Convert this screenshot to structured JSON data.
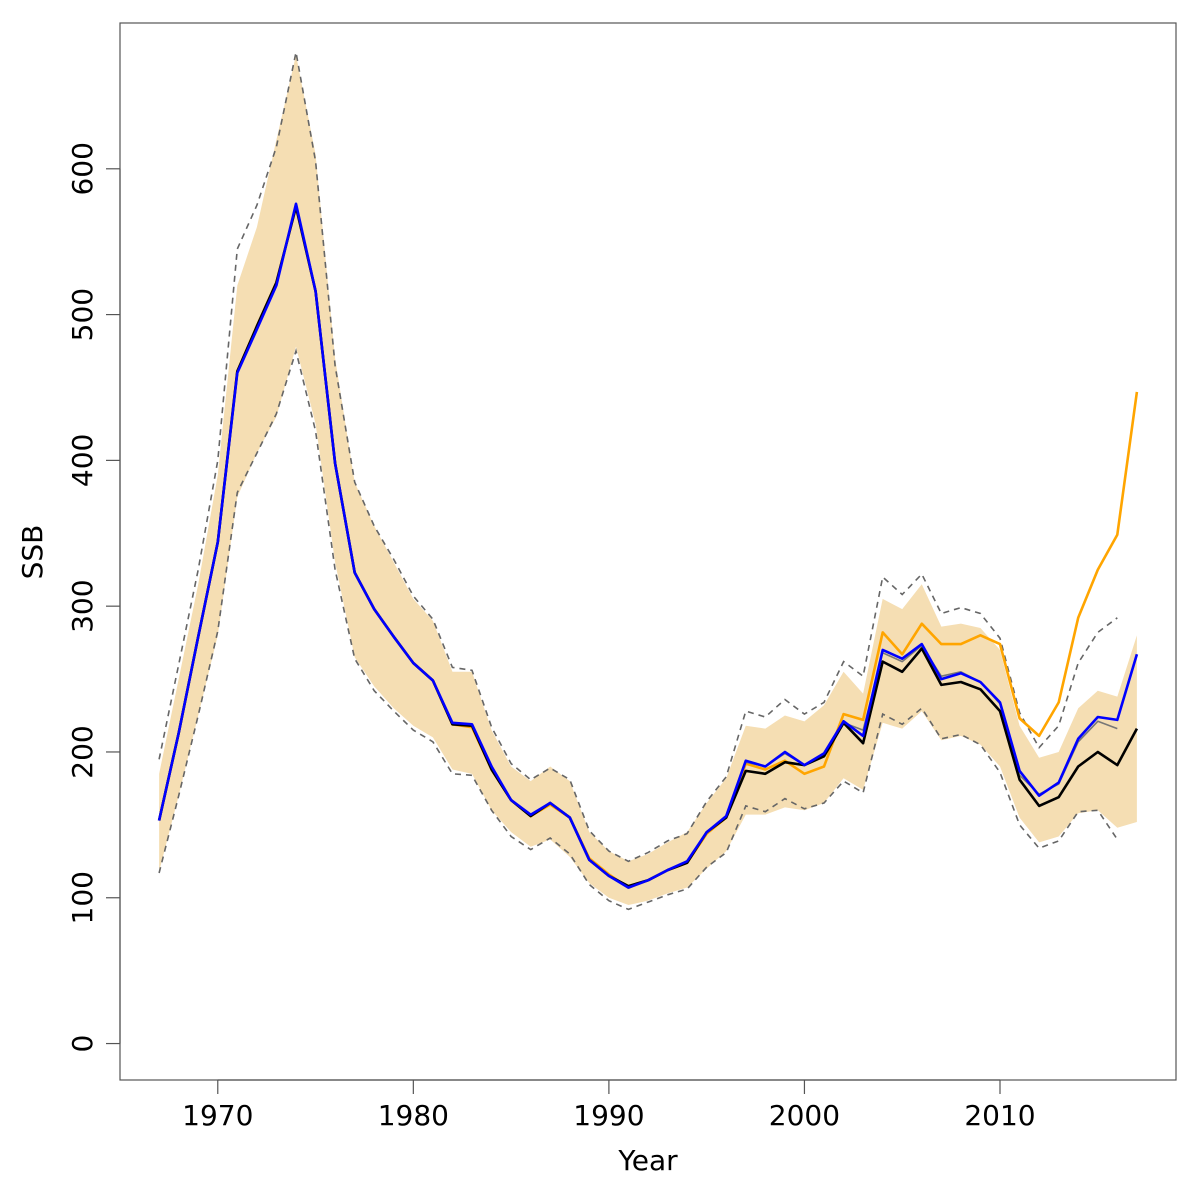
{
  "chart_data": {
    "type": "line",
    "title": "",
    "xlabel": "Year",
    "ylabel": "SSB",
    "xlim": [
      1965,
      2019
    ],
    "ylim": [
      -25,
      700
    ],
    "x_ticks": [
      1970,
      1980,
      1990,
      2000,
      2010
    ],
    "y_ticks": [
      0,
      100,
      200,
      300,
      400,
      500,
      600
    ],
    "grid": false,
    "legend": "none",
    "colors": {
      "band": "#f5deb3",
      "band_edge": "#666666",
      "orange": "#ffa500",
      "black": "#000000",
      "blue": "#0000ff",
      "grey": "#777777"
    },
    "x": [
      1967,
      1968,
      1969,
      1970,
      1971,
      1972,
      1973,
      1974,
      1975,
      1976,
      1977,
      1978,
      1979,
      1980,
      1981,
      1982,
      1983,
      1984,
      1985,
      1986,
      1987,
      1988,
      1989,
      1990,
      1991,
      1992,
      1993,
      1994,
      1995,
      1996,
      1997,
      1998,
      1999,
      2000,
      2001,
      2002,
      2003,
      2004,
      2005,
      2006,
      2007,
      2008,
      2009,
      2010,
      2011,
      2012,
      2013,
      2014,
      2015,
      2016,
      2017
    ],
    "band": {
      "upper": [
        185,
        250,
        315,
        390,
        520,
        560,
        620,
        678,
        610,
        470,
        385,
        355,
        330,
        305,
        290,
        255,
        255,
        215,
        190,
        180,
        190,
        180,
        145,
        132,
        125,
        130,
        138,
        145,
        165,
        182,
        218,
        216,
        225,
        221,
        232,
        255,
        240,
        305,
        298,
        315,
        286,
        288,
        285,
        270,
        218,
        196,
        200,
        230,
        242,
        238,
        280
      ],
      "lower": [
        118,
        170,
        225,
        280,
        375,
        405,
        430,
        478,
        425,
        330,
        265,
        245,
        230,
        218,
        210,
        188,
        185,
        160,
        145,
        135,
        140,
        128,
        110,
        100,
        95,
        98,
        103,
        107,
        120,
        132,
        157,
        157,
        162,
        160,
        165,
        182,
        174,
        220,
        216,
        228,
        208,
        211,
        205,
        190,
        155,
        138,
        142,
        158,
        160,
        148,
        152
      ]
    },
    "series": [
      {
        "name": "",
        "color": "orange",
        "values": [
          153,
          213,
          279,
          344,
          461,
          492,
          522,
          574,
          516,
          398,
          323,
          298,
          279,
          261,
          249,
          219,
          217,
          188,
          167,
          156,
          164,
          155,
          127,
          116,
          107,
          112,
          119,
          124,
          144,
          155,
          192,
          188,
          194,
          185,
          190,
          226,
          222,
          282,
          267,
          288,
          274,
          274,
          280,
          274,
          223,
          211,
          234,
          292,
          325,
          349,
          447
        ]
      },
      {
        "name": "",
        "color": "grey",
        "values": [
          153,
          213,
          279,
          344,
          461,
          492,
          522,
          574,
          516,
          398,
          323,
          298,
          279,
          261,
          249,
          219,
          218,
          189,
          167,
          157,
          165,
          155,
          126,
          115,
          108,
          112,
          119,
          125,
          145,
          156,
          193,
          190,
          199,
          191,
          199,
          220,
          215,
          268,
          262,
          273,
          252,
          255,
          248,
          233,
          184,
          171,
          178,
          207,
          221,
          216,
          null
        ]
      },
      {
        "name": "",
        "color": "black",
        "values": [
          153,
          213,
          279,
          344,
          461,
          492,
          522,
          574,
          516,
          398,
          323,
          298,
          279,
          261,
          249,
          219,
          218,
          188,
          167,
          156,
          165,
          155,
          126,
          115,
          108,
          112,
          119,
          124,
          145,
          155,
          187,
          185,
          193,
          191,
          197,
          220,
          206,
          262,
          255,
          271,
          246,
          248,
          243,
          228,
          181,
          163,
          169,
          190,
          200,
          191,
          216
        ]
      },
      {
        "name": "",
        "color": "blue",
        "values": [
          153,
          213,
          279,
          344,
          460,
          490,
          520,
          576,
          516,
          398,
          323,
          298,
          279,
          261,
          249,
          220,
          219,
          190,
          167,
          157,
          165,
          155,
          126,
          115,
          107,
          112,
          119,
          125,
          145,
          156,
          194,
          190,
          200,
          191,
          199,
          221,
          211,
          270,
          264,
          274,
          250,
          254,
          248,
          234,
          187,
          170,
          179,
          209,
          224,
          222,
          267
        ]
      }
    ],
    "dashed_bounds": {
      "upper": [
        195,
        260,
        325,
        400,
        545,
        575,
        615,
        680,
        605,
        465,
        385,
        355,
        332,
        307,
        291,
        258,
        256,
        217,
        192,
        181,
        189,
        181,
        146,
        132,
        125,
        131,
        139,
        144,
        166,
        183,
        228,
        224,
        236,
        226,
        234,
        262,
        252,
        320,
        308,
        322,
        295,
        299,
        295,
        278,
        227,
        203,
        218,
        261,
        282,
        292,
        null
      ],
      "lower": [
        117,
        170,
        225,
        283,
        378,
        405,
        432,
        475,
        420,
        325,
        264,
        242,
        228,
        215,
        207,
        185,
        184,
        160,
        142,
        133,
        141,
        130,
        109,
        98,
        92,
        97,
        102,
        106,
        121,
        131,
        163,
        159,
        168,
        161,
        165,
        180,
        172,
        226,
        219,
        230,
        209,
        212,
        205,
        186,
        150,
        134,
        139,
        159,
        160,
        140,
        null
      ]
    }
  }
}
